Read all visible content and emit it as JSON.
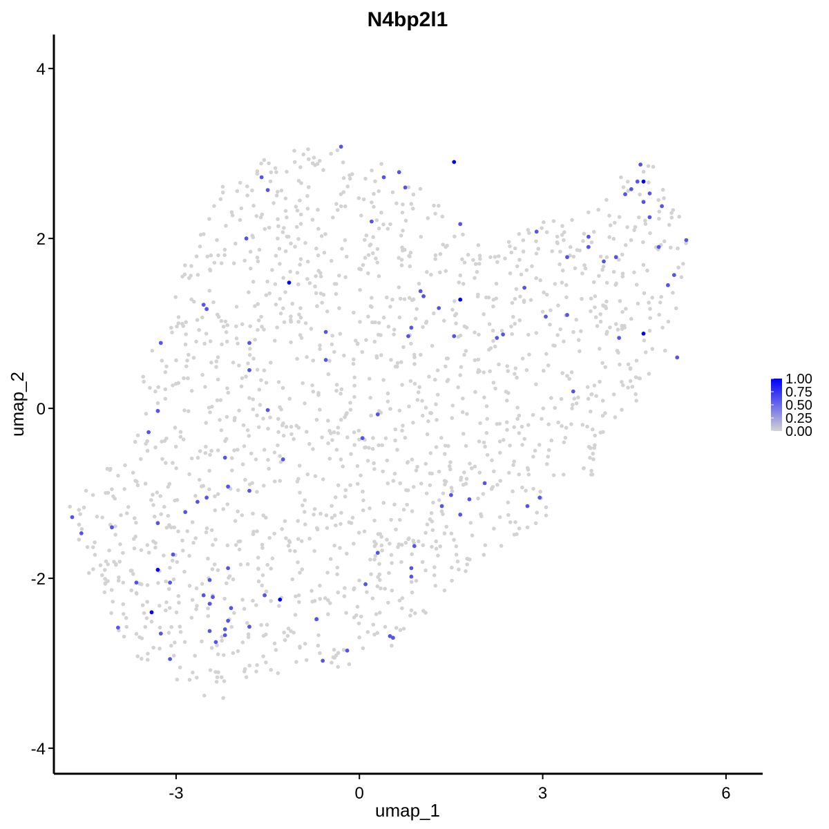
{
  "chart_data": {
    "type": "scatter",
    "title": "N4bp2l1",
    "xlabel": "umap_1",
    "ylabel": "umap_2",
    "xlim": [
      -5.0,
      6.6
    ],
    "ylim": [
      -4.3,
      4.4
    ],
    "x_ticks": [
      -3,
      0,
      3,
      6
    ],
    "x_tick_labels": [
      "-3",
      "0",
      "3",
      "6"
    ],
    "y_ticks": [
      -4,
      -2,
      0,
      2,
      4
    ],
    "y_tick_labels": [
      "-4",
      "-2",
      "0",
      "2",
      "4"
    ],
    "grid": false,
    "legend": {
      "placement": "right",
      "type": "color-gradient",
      "labels": [
        "1.00",
        "0.75",
        "0.50",
        "0.25",
        "0.00"
      ],
      "values": [
        1.0,
        0.75,
        0.5,
        0.25,
        0.0
      ],
      "low_color": "#d3d3d3",
      "high_color": "#0000ff"
    },
    "background_points": {
      "color": "#d3d3d3",
      "approx_count": 1600,
      "region_outline": [
        [
          -4.8,
          -1.2
        ],
        [
          -3.7,
          -0.4
        ],
        [
          -3.5,
          0.6
        ],
        [
          -3.0,
          1.6
        ],
        [
          -2.5,
          2.3
        ],
        [
          -2.0,
          2.9
        ],
        [
          -0.6,
          3.1
        ],
        [
          0.5,
          2.9
        ],
        [
          1.2,
          2.6
        ],
        [
          1.6,
          2.1
        ],
        [
          2.0,
          1.9
        ],
        [
          3.2,
          2.3
        ],
        [
          4.0,
          2.5
        ],
        [
          4.6,
          3.0
        ],
        [
          5.3,
          2.5
        ],
        [
          5.4,
          1.6
        ],
        [
          5.1,
          0.8
        ],
        [
          4.7,
          0.2
        ],
        [
          4.2,
          -0.3
        ],
        [
          3.8,
          -0.8
        ],
        [
          3.2,
          -1.2
        ],
        [
          2.7,
          -1.5
        ],
        [
          1.8,
          -1.9
        ],
        [
          1.2,
          -2.3
        ],
        [
          0.7,
          -2.8
        ],
        [
          0.0,
          -3.0
        ],
        [
          -0.8,
          -3.1
        ],
        [
          -1.5,
          -3.2
        ],
        [
          -2.4,
          -3.5
        ],
        [
          -3.0,
          -3.2
        ],
        [
          -3.9,
          -2.8
        ],
        [
          -4.4,
          -2.0
        ]
      ]
    },
    "expressed_points": [
      {
        "x": 1.55,
        "y": 2.9,
        "v": 1.0
      },
      {
        "x": -1.15,
        "y": 1.48,
        "v": 1.0
      },
      {
        "x": 1.65,
        "y": 1.28,
        "v": 1.0
      },
      {
        "x": 4.65,
        "y": 2.67,
        "v": 1.0
      },
      {
        "x": 4.65,
        "y": 0.88,
        "v": 1.0
      },
      {
        "x": -3.3,
        "y": -1.9,
        "v": 1.0
      },
      {
        "x": -3.4,
        "y": -2.4,
        "v": 1.0
      },
      {
        "x": -1.3,
        "y": -2.25,
        "v": 1.0
      },
      {
        "x": -0.3,
        "y": 3.08,
        "v": 0.6
      },
      {
        "x": 0.4,
        "y": 2.72,
        "v": 0.6
      },
      {
        "x": 0.65,
        "y": 2.78,
        "v": 0.6
      },
      {
        "x": 0.75,
        "y": 2.6,
        "v": 0.6
      },
      {
        "x": -1.6,
        "y": 2.72,
        "v": 0.6
      },
      {
        "x": -1.5,
        "y": 2.57,
        "v": 0.6
      },
      {
        "x": 0.2,
        "y": 2.2,
        "v": 0.6
      },
      {
        "x": 1.65,
        "y": 2.17,
        "v": 0.6
      },
      {
        "x": -1.85,
        "y": 2.0,
        "v": 0.6
      },
      {
        "x": 1.0,
        "y": 1.38,
        "v": 0.6
      },
      {
        "x": 1.05,
        "y": 1.32,
        "v": 0.6
      },
      {
        "x": 1.3,
        "y": 1.18,
        "v": 0.6
      },
      {
        "x": 1.55,
        "y": 0.85,
        "v": 0.6
      },
      {
        "x": -2.55,
        "y": 1.22,
        "v": 0.6
      },
      {
        "x": -2.5,
        "y": 1.17,
        "v": 0.6
      },
      {
        "x": -3.25,
        "y": 0.77,
        "v": 0.6
      },
      {
        "x": -1.8,
        "y": 0.77,
        "v": 0.6
      },
      {
        "x": -0.55,
        "y": 0.9,
        "v": 0.6
      },
      {
        "x": -0.55,
        "y": 0.57,
        "v": 0.6
      },
      {
        "x": 0.8,
        "y": 0.85,
        "v": 0.6
      },
      {
        "x": 0.85,
        "y": 0.95,
        "v": 0.6
      },
      {
        "x": 2.25,
        "y": 0.83,
        "v": 0.6
      },
      {
        "x": 2.35,
        "y": 0.87,
        "v": 0.6
      },
      {
        "x": -1.8,
        "y": 0.45,
        "v": 0.6
      },
      {
        "x": -1.5,
        "y": -0.02,
        "v": 0.6
      },
      {
        "x": 0.3,
        "y": -0.07,
        "v": 0.6
      },
      {
        "x": 0.05,
        "y": -0.35,
        "v": 0.6
      },
      {
        "x": -3.3,
        "y": -0.03,
        "v": 0.6
      },
      {
        "x": -3.45,
        "y": -0.28,
        "v": 0.6
      },
      {
        "x": -1.25,
        "y": -0.6,
        "v": 0.6
      },
      {
        "x": -2.2,
        "y": -0.58,
        "v": 0.6
      },
      {
        "x": -2.15,
        "y": -0.92,
        "v": 0.6
      },
      {
        "x": -1.8,
        "y": -0.97,
        "v": 0.6
      },
      {
        "x": -2.5,
        "y": -1.05,
        "v": 0.6
      },
      {
        "x": -2.65,
        "y": -1.1,
        "v": 0.6
      },
      {
        "x": -2.85,
        "y": -1.22,
        "v": 0.6
      },
      {
        "x": -3.3,
        "y": -1.35,
        "v": 0.6
      },
      {
        "x": -4.7,
        "y": -1.28,
        "v": 0.6
      },
      {
        "x": -4.55,
        "y": -1.47,
        "v": 0.6
      },
      {
        "x": -4.05,
        "y": -1.4,
        "v": 0.6
      },
      {
        "x": -3.05,
        "y": -1.72,
        "v": 0.6
      },
      {
        "x": -3.1,
        "y": -2.05,
        "v": 0.6
      },
      {
        "x": -2.45,
        "y": -2.02,
        "v": 0.6
      },
      {
        "x": -3.65,
        "y": -2.05,
        "v": 0.6
      },
      {
        "x": -2.15,
        "y": -1.88,
        "v": 0.6
      },
      {
        "x": -2.55,
        "y": -2.2,
        "v": 0.6
      },
      {
        "x": -2.4,
        "y": -2.22,
        "v": 0.6
      },
      {
        "x": -2.45,
        "y": -2.3,
        "v": 0.6
      },
      {
        "x": -2.1,
        "y": -2.35,
        "v": 0.6
      },
      {
        "x": -1.55,
        "y": -2.2,
        "v": 0.6
      },
      {
        "x": -2.15,
        "y": -2.5,
        "v": 0.6
      },
      {
        "x": -2.2,
        "y": -2.6,
        "v": 0.6
      },
      {
        "x": -2.2,
        "y": -2.67,
        "v": 0.6
      },
      {
        "x": -2.45,
        "y": -2.62,
        "v": 0.6
      },
      {
        "x": -2.35,
        "y": -2.75,
        "v": 0.6
      },
      {
        "x": -1.8,
        "y": -2.57,
        "v": 0.6
      },
      {
        "x": -3.25,
        "y": -2.65,
        "v": 0.6
      },
      {
        "x": -3.95,
        "y": -2.58,
        "v": 0.6
      },
      {
        "x": -3.1,
        "y": -2.95,
        "v": 0.6
      },
      {
        "x": -0.7,
        "y": -2.48,
        "v": 0.6
      },
      {
        "x": -0.6,
        "y": -2.97,
        "v": 0.6
      },
      {
        "x": -0.2,
        "y": -2.85,
        "v": 0.6
      },
      {
        "x": 0.5,
        "y": -2.68,
        "v": 0.6
      },
      {
        "x": 0.55,
        "y": -2.7,
        "v": 0.6
      },
      {
        "x": 0.1,
        "y": -2.07,
        "v": 0.6
      },
      {
        "x": 0.3,
        "y": -1.7,
        "v": 0.6
      },
      {
        "x": 0.9,
        "y": -1.62,
        "v": 0.6
      },
      {
        "x": 0.85,
        "y": -1.88,
        "v": 0.6
      },
      {
        "x": 0.85,
        "y": -1.98,
        "v": 0.6
      },
      {
        "x": 1.35,
        "y": -1.15,
        "v": 0.6
      },
      {
        "x": 1.5,
        "y": -1.02,
        "v": 0.6
      },
      {
        "x": 1.65,
        "y": -1.25,
        "v": 0.6
      },
      {
        "x": 1.8,
        "y": -1.07,
        "v": 0.6
      },
      {
        "x": 2.05,
        "y": -0.88,
        "v": 0.6
      },
      {
        "x": 2.75,
        "y": -1.15,
        "v": 0.6
      },
      {
        "x": 2.95,
        "y": -1.05,
        "v": 0.6
      },
      {
        "x": 2.7,
        "y": 1.42,
        "v": 0.6
      },
      {
        "x": 3.05,
        "y": 1.08,
        "v": 0.6
      },
      {
        "x": 3.4,
        "y": 1.1,
        "v": 0.6
      },
      {
        "x": 2.9,
        "y": 2.08,
        "v": 0.6
      },
      {
        "x": 3.4,
        "y": 1.78,
        "v": 0.6
      },
      {
        "x": 3.75,
        "y": 1.9,
        "v": 0.6
      },
      {
        "x": 3.75,
        "y": 2.02,
        "v": 0.6
      },
      {
        "x": 4.0,
        "y": 1.73,
        "v": 0.6
      },
      {
        "x": 4.2,
        "y": 1.78,
        "v": 0.6
      },
      {
        "x": 3.5,
        "y": 0.2,
        "v": 0.6
      },
      {
        "x": 4.25,
        "y": 0.83,
        "v": 0.6
      },
      {
        "x": 4.35,
        "y": 2.52,
        "v": 0.6
      },
      {
        "x": 4.45,
        "y": 2.58,
        "v": 0.6
      },
      {
        "x": 4.55,
        "y": 2.67,
        "v": 0.6
      },
      {
        "x": 4.6,
        "y": 2.87,
        "v": 0.6
      },
      {
        "x": 4.65,
        "y": 2.43,
        "v": 0.6
      },
      {
        "x": 4.75,
        "y": 2.53,
        "v": 0.6
      },
      {
        "x": 4.75,
        "y": 2.25,
        "v": 0.6
      },
      {
        "x": 4.95,
        "y": 2.38,
        "v": 0.6
      },
      {
        "x": 4.9,
        "y": 1.9,
        "v": 0.6
      },
      {
        "x": 5.35,
        "y": 1.98,
        "v": 0.6
      },
      {
        "x": 5.05,
        "y": 1.45,
        "v": 0.6
      },
      {
        "x": 5.15,
        "y": 1.57,
        "v": 0.6
      },
      {
        "x": 5.2,
        "y": 0.6,
        "v": 0.6
      }
    ]
  }
}
